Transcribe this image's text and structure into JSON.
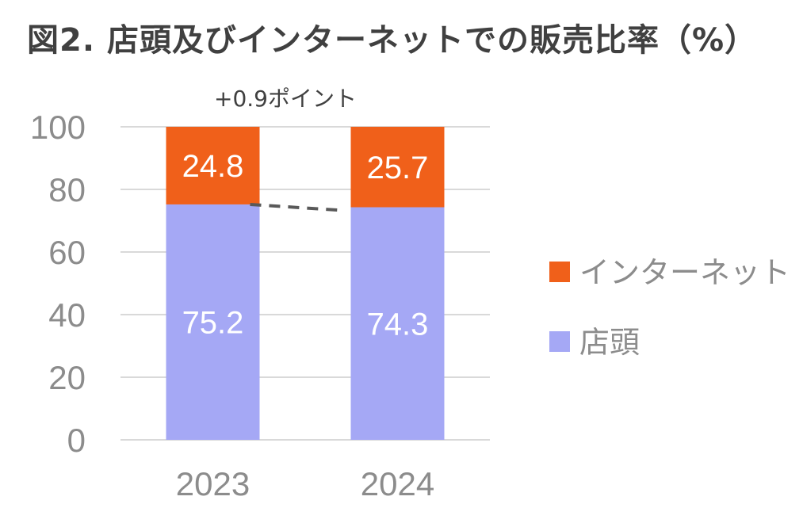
{
  "title": "図2. 店頭及びインターネットでの販売比率（%）",
  "chart_data": {
    "type": "bar",
    "stacked": true,
    "categories": [
      "2023",
      "2024"
    ],
    "series": [
      {
        "name": "店頭",
        "values": [
          75.2,
          74.3
        ],
        "color": "#a5a8f5"
      },
      {
        "name": "インターネット",
        "values": [
          24.8,
          25.7
        ],
        "color": "#f0601a"
      }
    ],
    "y_ticks": [
      "0",
      "20",
      "40",
      "60",
      "80",
      "100"
    ],
    "ylim": [
      0,
      100
    ],
    "grid": true,
    "legend": "right",
    "legend_order": [
      "インターネット",
      "店頭"
    ],
    "annotation": "+0.9ポイント"
  }
}
